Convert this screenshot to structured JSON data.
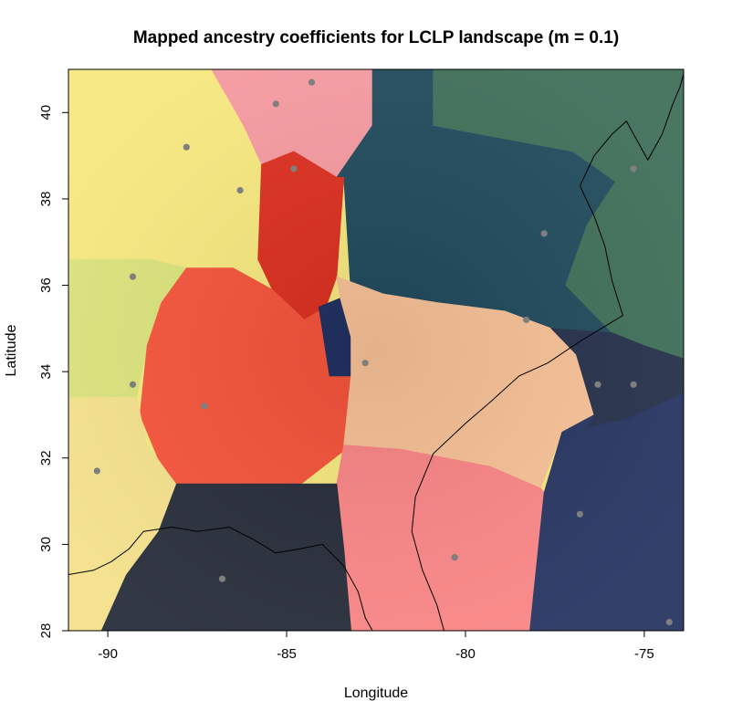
{
  "chart_data": {
    "type": "heatmap",
    "title": "Mapped ancestry coefficients for LCLP landscape (m = 0.1)",
    "xlabel": "Longitude",
    "ylabel": "Latitude",
    "xlim": [
      -91.1,
      -73.9
    ],
    "ylim": [
      28.0,
      41.0
    ],
    "x_ticks": [
      -90,
      -85,
      -80,
      -75
    ],
    "x_tick_labels": [
      "-90",
      "-85",
      "-80",
      "-75"
    ],
    "y_ticks": [
      28,
      30,
      32,
      34,
      36,
      38,
      40
    ],
    "y_tick_labels": [
      "28",
      "30",
      "32",
      "34",
      "36",
      "38",
      "40"
    ],
    "grid": false,
    "legend": "none",
    "sample_points": [
      {
        "x": -84.3,
        "y": 40.7
      },
      {
        "x": -85.3,
        "y": 40.2
      },
      {
        "x": -87.8,
        "y": 39.2
      },
      {
        "x": -84.8,
        "y": 38.7
      },
      {
        "x": -86.3,
        "y": 38.2
      },
      {
        "x": -89.3,
        "y": 36.2
      },
      {
        "x": -77.8,
        "y": 37.2
      },
      {
        "x": -78.3,
        "y": 35.2
      },
      {
        "x": -75.3,
        "y": 38.7
      },
      {
        "x": -82.8,
        "y": 34.2
      },
      {
        "x": -89.3,
        "y": 33.7
      },
      {
        "x": -87.3,
        "y": 33.2
      },
      {
        "x": -76.3,
        "y": 33.7
      },
      {
        "x": -75.3,
        "y": 33.7
      },
      {
        "x": -90.3,
        "y": 31.7
      },
      {
        "x": -76.8,
        "y": 30.7
      },
      {
        "x": -80.3,
        "y": 29.7
      },
      {
        "x": -86.8,
        "y": 29.2
      },
      {
        "x": -74.3,
        "y": 28.2
      }
    ],
    "regions": [
      {
        "color": "#f6e87e",
        "polygon": [
          [
            -91.1,
            41
          ],
          [
            -87.1,
            41
          ],
          [
            -86.2,
            39.7
          ],
          [
            -85.7,
            38.8
          ],
          [
            -85.8,
            36.6
          ],
          [
            -86.5,
            36.4
          ],
          [
            -87.8,
            36.4
          ],
          [
            -88.8,
            36.6
          ],
          [
            -91.1,
            36.6
          ]
        ]
      },
      {
        "color": "#f59aa0",
        "polygon": [
          [
            -87.1,
            41
          ],
          [
            -82.6,
            41
          ],
          [
            -82.6,
            39.7
          ],
          [
            -83.6,
            38.5
          ],
          [
            -84.8,
            39.1
          ],
          [
            -85.7,
            38.8
          ],
          [
            -86.2,
            39.7
          ]
        ]
      },
      {
        "color": "#1f4a5c",
        "polygon": [
          [
            -82.6,
            41
          ],
          [
            -80.9,
            41
          ],
          [
            -80.9,
            39.7
          ],
          [
            -77,
            39.1
          ],
          [
            -75,
            38.2
          ],
          [
            -74,
            37
          ],
          [
            -74,
            34.3
          ],
          [
            -75.9,
            34.9
          ],
          [
            -77.6,
            35
          ],
          [
            -78.9,
            35.4
          ],
          [
            -80.8,
            35.6
          ],
          [
            -82.3,
            35.8
          ],
          [
            -83.2,
            35.8
          ],
          [
            -83.4,
            38.5
          ],
          [
            -83.6,
            38.5
          ],
          [
            -82.6,
            39.7
          ]
        ]
      },
      {
        "color": "#3e6e58",
        "polygon": [
          [
            -80.9,
            41
          ],
          [
            -73.9,
            41
          ],
          [
            -73.9,
            34.3
          ],
          [
            -75,
            34.6
          ],
          [
            -75.9,
            34.9
          ],
          [
            -77.2,
            36
          ],
          [
            -76.6,
            37.4
          ],
          [
            -75.8,
            38.4
          ],
          [
            -77,
            39.1
          ],
          [
            -80.9,
            39.7
          ]
        ]
      },
      {
        "color": "#dc2f1f",
        "polygon": [
          [
            -85.7,
            38.8
          ],
          [
            -84.8,
            39.1
          ],
          [
            -83.6,
            38.5
          ],
          [
            -83.4,
            38.5
          ],
          [
            -83.6,
            36.2
          ],
          [
            -83.9,
            35.5
          ],
          [
            -84.5,
            35.2
          ],
          [
            -85.4,
            35.9
          ],
          [
            -85.8,
            36.6
          ]
        ]
      },
      {
        "color": "#dbe27a",
        "polygon": [
          [
            -91.1,
            36.6
          ],
          [
            -88.8,
            36.6
          ],
          [
            -87.8,
            36.4
          ],
          [
            -88.5,
            35.6
          ],
          [
            -88.9,
            34.6
          ],
          [
            -89.2,
            33.4
          ],
          [
            -91.1,
            33.4
          ]
        ]
      },
      {
        "color": "#f5533a",
        "polygon": [
          [
            -87.8,
            36.4
          ],
          [
            -86.5,
            36.4
          ],
          [
            -85.4,
            35.9
          ],
          [
            -84.5,
            35.2
          ],
          [
            -83.9,
            35.5
          ],
          [
            -83.3,
            34.8
          ],
          [
            -83.2,
            33.9
          ],
          [
            -83.2,
            32.3
          ],
          [
            -84.6,
            31.4
          ],
          [
            -87.5,
            31.4
          ],
          [
            -88.1,
            31.4
          ],
          [
            -88.6,
            32
          ],
          [
            -89.1,
            33
          ],
          [
            -88.9,
            34.6
          ],
          [
            -88.5,
            35.6
          ]
        ]
      },
      {
        "color": "#1f2f60",
        "polygon": [
          [
            -84.1,
            35.5
          ],
          [
            -83.5,
            35.7
          ],
          [
            -83.2,
            34.8
          ],
          [
            -82.8,
            34.3
          ],
          [
            -83.0,
            33.9
          ],
          [
            -83.8,
            33.9
          ]
        ]
      },
      {
        "color": "#f7c196",
        "polygon": [
          [
            -83.5,
            35.7
          ],
          [
            -83.6,
            36.2
          ],
          [
            -82.3,
            35.8
          ],
          [
            -80.8,
            35.6
          ],
          [
            -78.9,
            35.4
          ],
          [
            -77.6,
            35
          ],
          [
            -76.9,
            34.4
          ],
          [
            -76.4,
            33
          ],
          [
            -77.3,
            32.6
          ],
          [
            -77.9,
            31.3
          ],
          [
            -79.3,
            31.8
          ],
          [
            -81.8,
            32.2
          ],
          [
            -83.4,
            32.3
          ],
          [
            -83.2,
            33.9
          ],
          [
            -83.2,
            34.8
          ]
        ]
      },
      {
        "color": "#25304a",
        "polygon": [
          [
            -77.6,
            35
          ],
          [
            -75.9,
            34.9
          ],
          [
            -75,
            34.6
          ],
          [
            -73.9,
            34.3
          ],
          [
            -73.9,
            33.5
          ],
          [
            -75.5,
            32.9
          ],
          [
            -76.6,
            32.7
          ],
          [
            -76.4,
            33
          ],
          [
            -76.9,
            34.4
          ]
        ]
      },
      {
        "color": "#fa8585",
        "polygon": [
          [
            -83.4,
            32.3
          ],
          [
            -81.8,
            32.2
          ],
          [
            -79.3,
            31.8
          ],
          [
            -77.9,
            31.3
          ],
          [
            -77.8,
            31.2
          ],
          [
            -78.0,
            29.6
          ],
          [
            -78.2,
            28
          ],
          [
            -83.2,
            28
          ],
          [
            -83.4,
            29.9
          ],
          [
            -83.6,
            31.4
          ]
        ]
      },
      {
        "color": "#253461",
        "polygon": [
          [
            -73.9,
            33.5
          ],
          [
            -73.9,
            28
          ],
          [
            -78.2,
            28
          ],
          [
            -78.0,
            29.6
          ],
          [
            -77.8,
            31.2
          ],
          [
            -77.3,
            32.6
          ],
          [
            -76.4,
            33
          ],
          [
            -76.6,
            32.7
          ],
          [
            -75.5,
            32.9
          ]
        ]
      },
      {
        "color": "#252b38",
        "polygon": [
          [
            -88.1,
            31.4
          ],
          [
            -84.6,
            31.4
          ],
          [
            -83.6,
            31.4
          ],
          [
            -83.4,
            29.9
          ],
          [
            -83.2,
            28
          ],
          [
            -90.2,
            28
          ],
          [
            -89.5,
            29.3
          ],
          [
            -88.6,
            30.3
          ]
        ]
      },
      {
        "color": "#f3e08a",
        "polygon": [
          [
            -91.1,
            33.4
          ],
          [
            -89.2,
            33.4
          ],
          [
            -88.9,
            32.3
          ],
          [
            -88.1,
            31.4
          ],
          [
            -88.6,
            30.3
          ],
          [
            -89.5,
            29.3
          ],
          [
            -90.2,
            28
          ],
          [
            -91.1,
            28
          ]
        ]
      }
    ],
    "coastline": [
      [
        [
          -91.1,
          29.3
        ],
        [
          -90.4,
          29.4
        ],
        [
          -89.9,
          29.6
        ],
        [
          -89.4,
          29.9
        ],
        [
          -89.0,
          30.3
        ],
        [
          -88.2,
          30.4
        ],
        [
          -87.5,
          30.3
        ],
        [
          -86.6,
          30.4
        ],
        [
          -85.9,
          30.1
        ],
        [
          -85.3,
          29.8
        ],
        [
          -84.6,
          29.9
        ],
        [
          -84.0,
          30.0
        ],
        [
          -83.4,
          29.5
        ],
        [
          -83.0,
          28.9
        ],
        [
          -82.8,
          28.3
        ],
        [
          -82.6,
          28.0
        ]
      ],
      [
        [
          -80.6,
          28.0
        ],
        [
          -80.8,
          28.6
        ],
        [
          -81.2,
          29.4
        ],
        [
          -81.5,
          30.3
        ],
        [
          -81.4,
          31.1
        ],
        [
          -80.9,
          32.1
        ],
        [
          -80.0,
          32.8
        ],
        [
          -79.3,
          33.3
        ],
        [
          -78.5,
          33.9
        ],
        [
          -77.7,
          34.2
        ],
        [
          -76.8,
          34.7
        ],
        [
          -76.2,
          35.0
        ],
        [
          -75.6,
          35.3
        ],
        [
          -75.9,
          36.1
        ],
        [
          -76.1,
          36.9
        ],
        [
          -76.4,
          37.6
        ],
        [
          -76.8,
          38.3
        ],
        [
          -76.4,
          39.0
        ],
        [
          -75.9,
          39.5
        ],
        [
          -75.5,
          39.8
        ],
        [
          -75.1,
          39.2
        ],
        [
          -74.9,
          38.9
        ],
        [
          -74.5,
          39.5
        ],
        [
          -74.2,
          40.2
        ],
        [
          -74.0,
          40.6
        ],
        [
          -73.9,
          40.9
        ]
      ]
    ]
  }
}
